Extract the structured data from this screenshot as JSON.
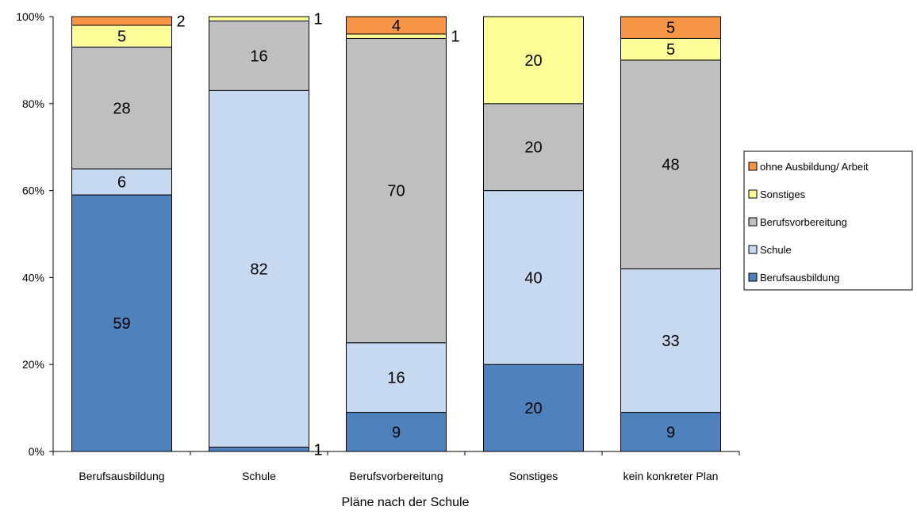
{
  "chart_data": {
    "type": "bar",
    "stacked": true,
    "percent_stacked": true,
    "categories": [
      "Berufsausbildung",
      "Schule",
      "Berufsvorbereitung",
      "Sonstiges",
      "kein konkreter Plan"
    ],
    "series": [
      {
        "name": "Berufsausbildung",
        "color": "#4F81BD",
        "values": [
          59,
          1,
          9,
          20,
          9
        ]
      },
      {
        "name": "Schule",
        "color": "#C6D9F1",
        "values": [
          6,
          82,
          16,
          40,
          33
        ]
      },
      {
        "name": "Berufsvorbereitung",
        "color": "#BFBFBF",
        "values": [
          28,
          16,
          70,
          20,
          48
        ]
      },
      {
        "name": "Sonstiges",
        "color": "#FFFF99",
        "values": [
          5,
          1,
          1,
          20,
          5
        ]
      },
      {
        "name": "ohne Ausbildung/ Arbeit",
        "color": "#F79646",
        "values": [
          2,
          0,
          4,
          0,
          5
        ]
      }
    ],
    "legend_order": [
      "ohne Ausbildung/ Arbeit",
      "Sonstiges",
      "Berufsvorbereitung",
      "Schule",
      "Berufsausbildung"
    ],
    "y_ticks": [
      "0%",
      "20%",
      "40%",
      "60%",
      "80%",
      "100%"
    ],
    "ylim": [
      0,
      100
    ],
    "title": "",
    "xlabel": "Pläne nach der Schule",
    "ylabel": "",
    "grid": false,
    "legend_position": "right"
  }
}
